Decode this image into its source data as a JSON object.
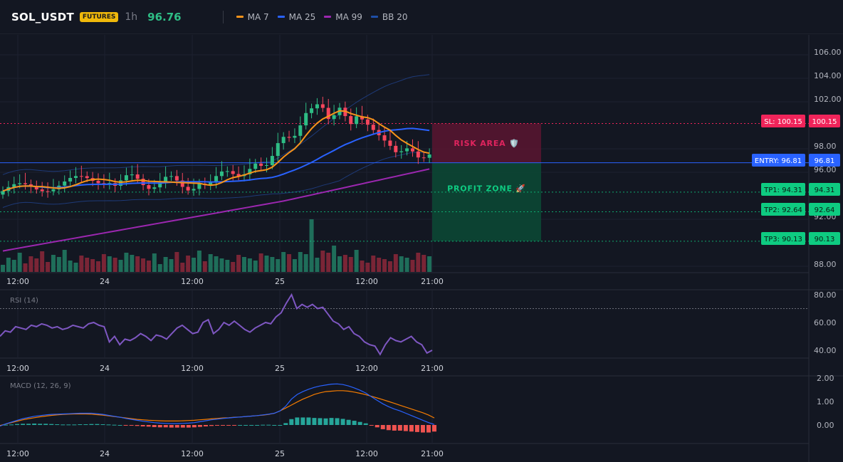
{
  "header": {
    "symbol": "SOL_USDT",
    "badge": "FUTURES",
    "timeframe": "1h",
    "price": "96.76",
    "legend": [
      {
        "label": "MA 7",
        "color": "#f7931a"
      },
      {
        "label": "MA 25",
        "color": "#2962ff"
      },
      {
        "label": "MA 99",
        "color": "#9c27b0"
      },
      {
        "label": "BB 20",
        "color": "#1e4fa8"
      }
    ]
  },
  "colors": {
    "up": "#2ebd85",
    "down": "#f6465d",
    "vol_up": "#1f6e5a",
    "vol_down": "#7a2536",
    "ma7": "#f7931a",
    "ma25": "#2962ff",
    "ma99": "#9c27b0",
    "bb": "#1e3a78",
    "rsi": "#7e57c2",
    "macd": "#2962ff",
    "signal": "#f57c00",
    "sl": "#f0245a",
    "entry": "#2962ff",
    "tp": "#0ecb81"
  },
  "time_axis": [
    "12:00",
    "24",
    "12:00",
    "25",
    "12:00",
    "21:00"
  ],
  "main_pane": {
    "price_labels": [
      "106.00",
      "104.00",
      "102.00",
      "98.00",
      "96.00",
      "92.00",
      "88.00"
    ],
    "levels": {
      "sl": {
        "label": "SL: 100.15",
        "value": "100.15",
        "price": 100.15
      },
      "entry": {
        "label": "ENTRY: 96.81",
        "value": "96.81",
        "price": 96.81
      },
      "tp1": {
        "label": "TP1: 94.31",
        "value": "94.31",
        "price": 94.31
      },
      "tp2": {
        "label": "TP2: 92.64",
        "value": "92.64",
        "price": 92.64
      },
      "tp3": {
        "label": "TP3: 90.13",
        "value": "90.13",
        "price": 90.13
      }
    },
    "risk_label": "RISK AREA 🛡️",
    "profit_label": "PROFIT ZONE 🚀"
  },
  "rsi_pane": {
    "title": "RSI (14)",
    "labels": [
      "80.00",
      "60.00",
      "40.00"
    ],
    "overbought": 70,
    "values": [
      50,
      54,
      53,
      57,
      56,
      55,
      58,
      57,
      59,
      58,
      56,
      57,
      55,
      56,
      58,
      57,
      56,
      59,
      60,
      58,
      57,
      46,
      50,
      44,
      48,
      47,
      49,
      52,
      50,
      47,
      51,
      50,
      48,
      52,
      56,
      58,
      55,
      52,
      53,
      60,
      62,
      52,
      55,
      60,
      58,
      61,
      58,
      55,
      53,
      56,
      58,
      60,
      59,
      64,
      67,
      74,
      80,
      70,
      73,
      71,
      73,
      70,
      71,
      66,
      61,
      59,
      55,
      57,
      52,
      50,
      46,
      44,
      43,
      37,
      44,
      49,
      47,
      46,
      48,
      50,
      46,
      44,
      38,
      40
    ]
  },
  "macd_pane": {
    "title": "MACD (12, 26, 9)",
    "labels": [
      "2.00",
      "1.00",
      "0.00"
    ],
    "macd": [
      -0.05,
      0.05,
      0.12,
      0.2,
      0.27,
      0.32,
      0.37,
      0.4,
      0.43,
      0.45,
      0.46,
      0.47,
      0.48,
      0.49,
      0.5,
      0.5,
      0.5,
      0.48,
      0.45,
      0.41,
      0.37,
      0.33,
      0.28,
      0.24,
      0.2,
      0.16,
      0.13,
      0.1,
      0.08,
      0.07,
      0.06,
      0.06,
      0.07,
      0.08,
      0.1,
      0.14,
      0.18,
      0.22,
      0.25,
      0.28,
      0.3,
      0.32,
      0.34,
      0.36,
      0.38,
      0.4,
      0.43,
      0.46,
      0.5,
      0.6,
      0.8,
      1.1,
      1.3,
      1.42,
      1.52,
      1.6,
      1.66,
      1.7,
      1.74,
      1.75,
      1.72,
      1.66,
      1.58,
      1.48,
      1.36,
      1.2,
      1.05,
      0.9,
      0.78,
      0.68,
      0.6,
      0.5,
      0.4,
      0.3,
      0.2,
      0.1,
      0.02
    ],
    "signal": [
      -0.02,
      0.04,
      0.1,
      0.16,
      0.22,
      0.27,
      0.31,
      0.35,
      0.38,
      0.41,
      0.43,
      0.45,
      0.46,
      0.47,
      0.47,
      0.47,
      0.46,
      0.44,
      0.42,
      0.39,
      0.36,
      0.33,
      0.3,
      0.27,
      0.24,
      0.22,
      0.2,
      0.19,
      0.18,
      0.17,
      0.17,
      0.17,
      0.18,
      0.19,
      0.2,
      0.22,
      0.24,
      0.26,
      0.28,
      0.3,
      0.31,
      0.33,
      0.34,
      0.36,
      0.38,
      0.4,
      0.42,
      0.45,
      0.5,
      0.6,
      0.72,
      0.85,
      0.98,
      1.1,
      1.2,
      1.3,
      1.37,
      1.42,
      1.44,
      1.46,
      1.46,
      1.44,
      1.4,
      1.35,
      1.29,
      1.22,
      1.15,
      1.08,
      1.0,
      0.92,
      0.84,
      0.76,
      0.68,
      0.6,
      0.52,
      0.42,
      0.3
    ]
  }
}
